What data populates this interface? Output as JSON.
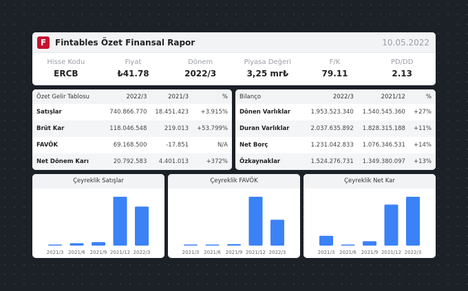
{
  "header": {
    "logo_letter": "F",
    "title": "Fintables Özet Finansal Rapor",
    "date": "10.05.2022"
  },
  "metrics": [
    {
      "label": "Hisse Kodu",
      "value": "ERCB"
    },
    {
      "label": "Fiyat",
      "value": "₺41.78"
    },
    {
      "label": "Dönem",
      "value": "2022/3"
    },
    {
      "label": "Piyasa Değeri",
      "value": "3,25 mr₺"
    },
    {
      "label": "F/K",
      "value": "79.11"
    },
    {
      "label": "PD/DD",
      "value": "2.13"
    }
  ],
  "income": {
    "headers": [
      "Özet Gelir Tablosu",
      "2022/3",
      "2021/3",
      "%"
    ],
    "rows": [
      {
        "name": "Satışlar",
        "v1": "740.866.770",
        "v2": "18.451.423",
        "pct": "+3.915%",
        "tone": "pos"
      },
      {
        "name": "Brüt Kar",
        "v1": "118.046.548",
        "v2": "219.013",
        "pct": "+53.799%",
        "tone": "pos"
      },
      {
        "name": "FAVÖK",
        "v1": "69.168.500",
        "v2": "-17.851",
        "pct": "N/A",
        "tone": "na"
      },
      {
        "name": "Net Dönem Karı",
        "v1": "20.792.583",
        "v2": "4.401.013",
        "pct": "+372%",
        "tone": "pos"
      }
    ]
  },
  "balance": {
    "headers": [
      "Bilanço",
      "2022/3",
      "2021/12",
      "%"
    ],
    "rows": [
      {
        "name": "Dönen Varlıklar",
        "v1": "1.953.523.340",
        "v2": "1.540.545.360",
        "pct": "+27%",
        "tone": "pos"
      },
      {
        "name": "Duran Varlıklar",
        "v1": "2.037.635.892",
        "v2": "1.828.315.188",
        "pct": "+11%",
        "tone": "pos"
      },
      {
        "name": "Net Borç",
        "v1": "1.231.042.833",
        "v2": "1.076.346.531",
        "pct": "+14%",
        "tone": "neg"
      },
      {
        "name": "Özkaynaklar",
        "v1": "1.524.276.731",
        "v2": "1.349.380.097",
        "pct": "+13%",
        "tone": "pos"
      }
    ]
  },
  "colors": {
    "bar": "#3b82f6",
    "positive": "#23a55a",
    "negative": "#e0322a",
    "brand": "#c8102e"
  },
  "chart_data": [
    {
      "type": "bar",
      "title": "Çeyreklik Satışlar",
      "categories": [
        "2021/3",
        "2021/6",
        "2021/9",
        "2021/12",
        "2022/3"
      ],
      "values": [
        0.02,
        0.05,
        0.07,
        1.0,
        0.8
      ],
      "ylim": [
        0,
        1
      ]
    },
    {
      "type": "bar",
      "title": "Çeyreklik FAVÖK",
      "categories": [
        "2021/3",
        "2021/6",
        "2021/9",
        "2021/12",
        "2022/3"
      ],
      "values": [
        0,
        0.02,
        0.03,
        1.0,
        0.53
      ],
      "ylim": [
        0,
        1
      ]
    },
    {
      "type": "bar",
      "title": "Çeyreklik Net Kar",
      "categories": [
        "2021/3",
        "2021/6",
        "2021/9",
        "2021/12",
        "2022/3"
      ],
      "values": [
        0.2,
        0.02,
        0.09,
        0.84,
        1.0
      ],
      "ylim": [
        0,
        1
      ]
    }
  ]
}
